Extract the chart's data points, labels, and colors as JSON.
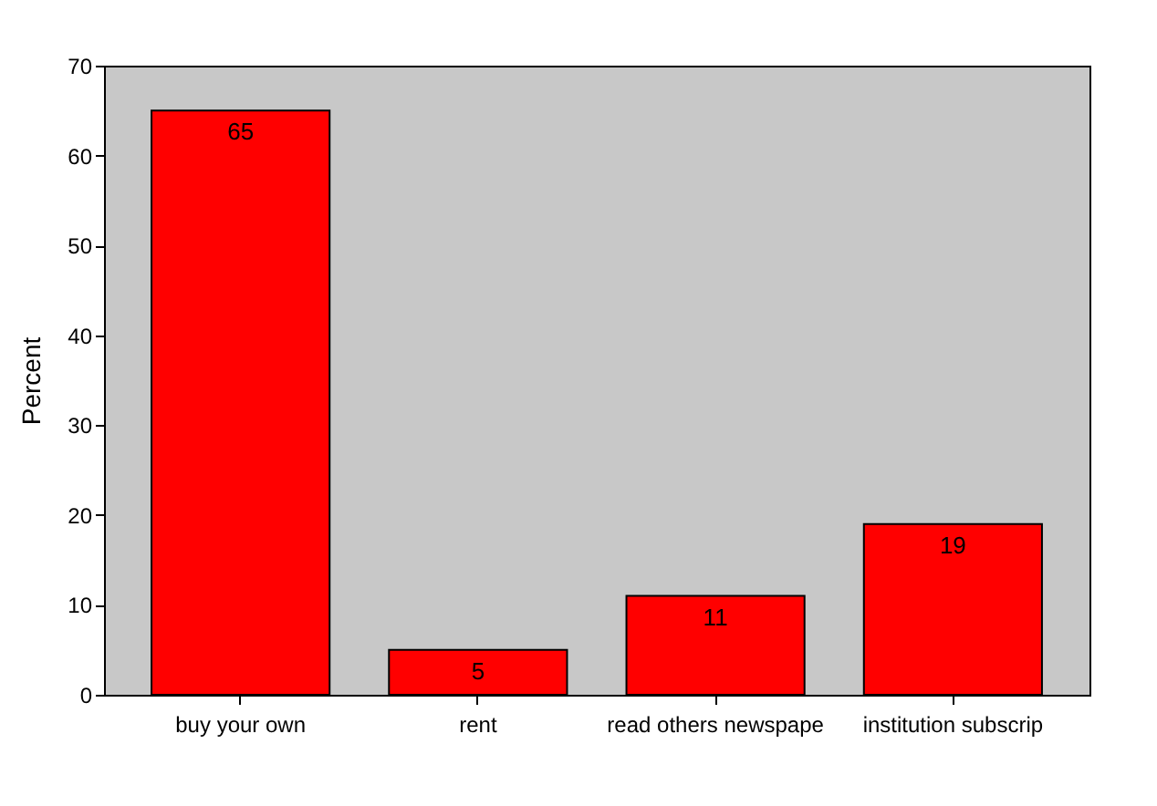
{
  "chart_data": {
    "type": "bar",
    "ylabel": "Percent",
    "categories": [
      "buy your own",
      "rent",
      "read others newspape",
      "institution subscrip"
    ],
    "values": [
      65,
      5,
      11,
      19
    ],
    "color": "#ff0000",
    "ylim": [
      0,
      70
    ],
    "yticks": [
      0,
      10,
      20,
      30,
      40,
      50,
      60,
      70
    ],
    "grid": false,
    "data_labels": true
  }
}
